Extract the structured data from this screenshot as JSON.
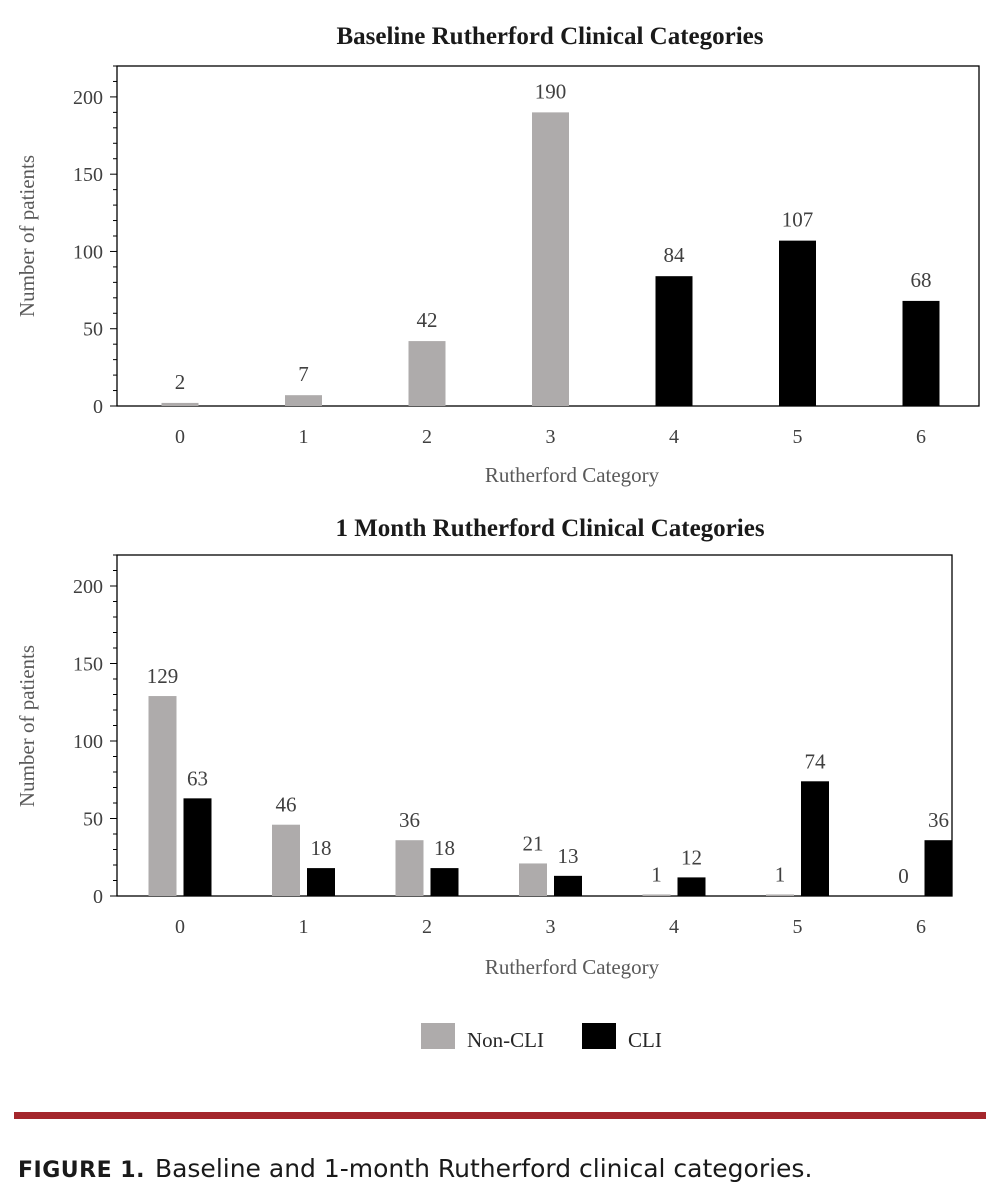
{
  "chart_data": [
    {
      "type": "bar",
      "title": "Baseline Rutherford Clinical Categories",
      "xlabel": "Rutherford Category",
      "ylabel": "Number of patients",
      "categories": [
        "0",
        "1",
        "2",
        "3",
        "4",
        "5",
        "6"
      ],
      "values": [
        2,
        7,
        42,
        190,
        84,
        107,
        68
      ],
      "bar_groups": [
        "Non-CLI",
        "Non-CLI",
        "Non-CLI",
        "Non-CLI",
        "CLI",
        "CLI",
        "CLI"
      ],
      "ylim": [
        0,
        220
      ],
      "yticks": [
        0,
        50,
        100,
        150,
        200
      ],
      "grid": false,
      "legend": "none"
    },
    {
      "type": "bar",
      "title": "1 Month Rutherford Clinical Categories",
      "xlabel": "Rutherford Category",
      "ylabel": "Number of patients",
      "categories": [
        "0",
        "1",
        "2",
        "3",
        "4",
        "5",
        "6"
      ],
      "series": [
        {
          "name": "Non-CLI",
          "values": [
            129,
            46,
            36,
            21,
            1,
            1,
            0
          ]
        },
        {
          "name": "CLI",
          "values": [
            63,
            18,
            18,
            13,
            12,
            74,
            36
          ]
        }
      ],
      "ylim": [
        0,
        220
      ],
      "yticks": [
        0,
        50,
        100,
        150,
        200
      ],
      "grid": false,
      "legend": "bottom-center"
    }
  ],
  "legend": {
    "items": [
      {
        "label": "Non-CLI",
        "color": "#aeabab"
      },
      {
        "label": "CLI",
        "color": "#000000"
      }
    ]
  },
  "colors": {
    "non_cli": "#aeabab",
    "cli": "#000000",
    "rule": "#a4262c"
  },
  "caption": {
    "label": "FIGURE 1.",
    "text": "Baseline and 1-month Rutherford clinical categories."
  }
}
